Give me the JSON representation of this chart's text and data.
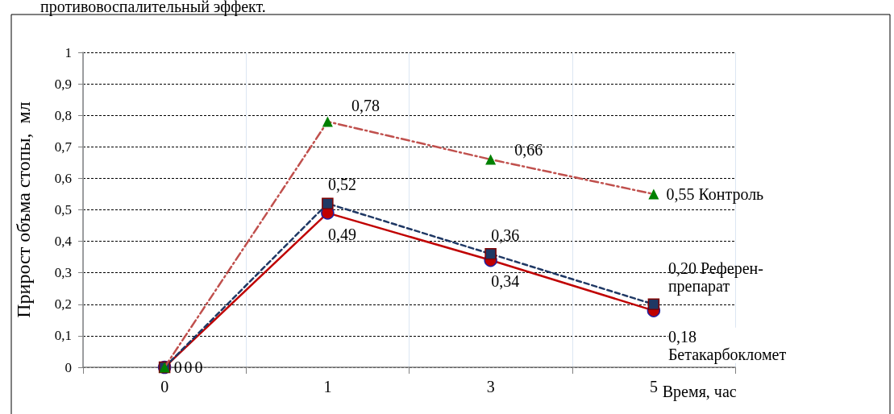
{
  "chart_data": {
    "type": "line",
    "ylabel": "Прирост объма стопы,  мл",
    "xlabel": "Время, час",
    "annotations": [
      "противовоспалительный эффект."
    ],
    "categories": [
      "0",
      "1",
      "3",
      "5"
    ],
    "ylim": [
      0,
      1
    ],
    "yticks": [
      0,
      {
        "value": 0.1,
        "label": "0,1"
      },
      {
        "value": 0.2,
        "label": "0,2"
      },
      {
        "value": 0.3,
        "label": "0,3"
      },
      {
        "value": 0.4,
        "label": "0,4"
      },
      {
        "value": 0.5,
        "label": "0,5"
      },
      {
        "value": 0.6,
        "label": "0,6"
      },
      {
        "value": 0.7,
        "label": "0,7"
      },
      {
        "value": 0.8,
        "label": "0,8"
      },
      {
        "value": 0.9,
        "label": "0,9"
      },
      1
    ],
    "grid": true,
    "legend": false,
    "series": [
      {
        "name": "Контроль",
        "color": "#c0504d",
        "colors": [
          "#008000",
          "#008000",
          "#008000",
          "#008000"
        ],
        "marker": "triangle",
        "line_style": "dashdot",
        "values": [
          0,
          0.78,
          0.66,
          0.55
        ],
        "value_labels": [
          "0",
          "0,78",
          "0,66",
          "0,55"
        ]
      },
      {
        "name": "Референ-препарат",
        "color": "#1f3864",
        "colors": [
          "#1f3864",
          "#1f3864",
          "#1f3864",
          "#1f3864"
        ],
        "marker": "square",
        "line_style": "dashed",
        "values": [
          0,
          0.52,
          0.36,
          0.2
        ],
        "value_labels": [
          "0",
          "0,52",
          "0,36",
          "0,20"
        ]
      },
      {
        "name": "Бетакарбокломет",
        "color": "#c00000",
        "colors": [
          "#c00000",
          "#c00000",
          "#c00000",
          "#c00000"
        ],
        "marker": "circle",
        "line_style": "solid",
        "values": [
          0,
          0.49,
          0.34,
          0.18
        ],
        "value_labels": [
          "0",
          "0,49",
          "0,34",
          "0,18"
        ]
      }
    ]
  }
}
